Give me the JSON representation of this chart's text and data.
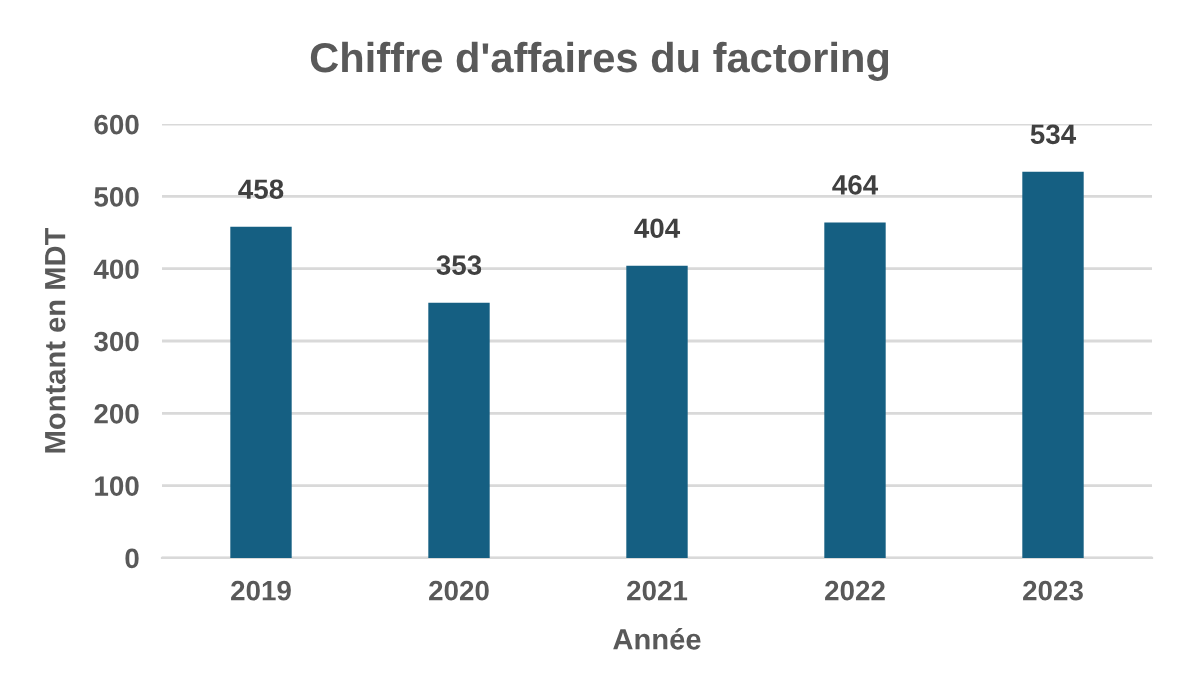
{
  "chart_data": {
    "type": "bar",
    "title": "Chiffre d'affaires du factoring",
    "xlabel": "Année",
    "ylabel": "Montant en MDT",
    "categories": [
      "2019",
      "2020",
      "2021",
      "2022",
      "2023"
    ],
    "values": [
      458,
      353,
      404,
      464,
      534
    ],
    "color": "#155f82",
    "ylim": [
      0,
      600
    ],
    "yticks": [
      0,
      100,
      200,
      300,
      400,
      500,
      600
    ],
    "grid": "y",
    "data_labels": true,
    "legend": false
  }
}
